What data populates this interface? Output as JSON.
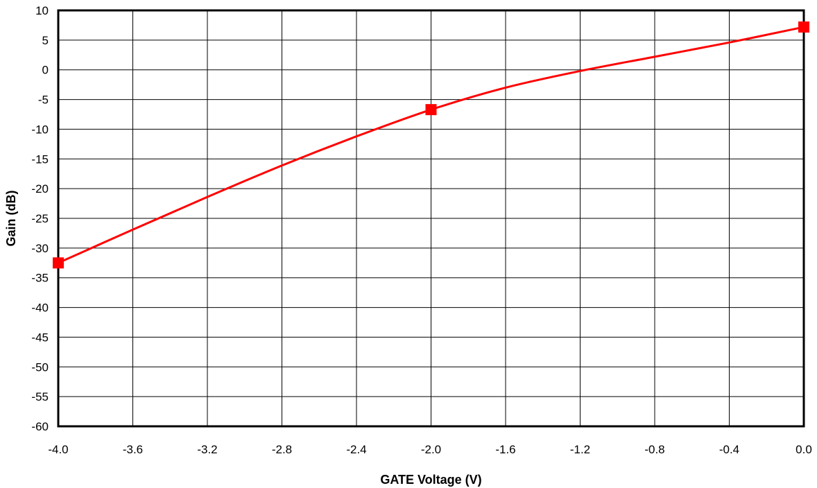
{
  "chart_data": {
    "type": "line",
    "title": "",
    "xlabel": "GATE Voltage (V)",
    "ylabel": "Gain (dB)",
    "xlim": [
      -4.0,
      0.0
    ],
    "ylim": [
      -60,
      10
    ],
    "grid": true,
    "x_ticks": [
      "-4.0",
      "-3.6",
      "-3.2",
      "-2.8",
      "-2.4",
      "-2.0",
      "-1.6",
      "-1.2",
      "-0.8",
      "-0.4",
      "0.0"
    ],
    "y_ticks": [
      "10",
      "5",
      "0",
      "-5",
      "-10",
      "-15",
      "-20",
      "-25",
      "-30",
      "-35",
      "-40",
      "-45",
      "-50",
      "-55",
      "-60"
    ],
    "colors": {
      "series": "#ff0000",
      "grid": "#000000",
      "frame": "#000000"
    },
    "series": [
      {
        "curve": {
          "x": [
            -4.0,
            -3.6,
            -3.2,
            -2.8,
            -2.4,
            -2.0,
            -1.6,
            -1.2,
            -0.8,
            -0.4,
            0.0
          ],
          "y": [
            -32.5,
            -26.9,
            -21.4,
            -16.1,
            -11.2,
            -6.7,
            -3.0,
            -0.2,
            2.2,
            4.6,
            7.2
          ]
        },
        "markers": {
          "x": [
            -4.0,
            -2.0,
            0.0
          ],
          "y": [
            -32.5,
            -6.7,
            7.2
          ]
        }
      }
    ]
  }
}
